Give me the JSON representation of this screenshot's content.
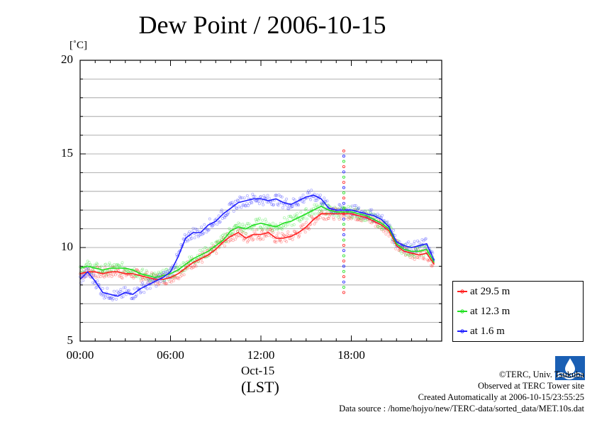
{
  "chart_data": {
    "type": "line",
    "title": "Dew Point / 2006-10-15",
    "y_unit": "[˚C]",
    "ylim": [
      5,
      20
    ],
    "y_ticks": [
      "5",
      "10",
      "15",
      "20"
    ],
    "xlim": [
      0,
      24
    ],
    "x_ticks": [
      "00:00",
      "06:00",
      "12:00",
      "18:00"
    ],
    "x_date": "Oct-15",
    "x_timezone": "(LST)",
    "grid": true,
    "legend_position": "bottom-right outside",
    "hours": [
      0,
      0.5,
      1,
      1.5,
      2,
      2.5,
      3,
      3.5,
      4,
      4.5,
      5,
      5.5,
      6,
      6.5,
      7,
      7.5,
      8,
      8.5,
      9,
      9.5,
      10,
      10.5,
      11,
      11.5,
      12,
      12.5,
      13,
      13.5,
      14,
      14.5,
      15,
      15.5,
      16,
      16.5,
      17,
      17.5,
      18,
      18.5,
      19,
      19.5,
      20,
      20.5,
      21,
      21.5,
      22,
      22.5,
      23,
      23.5
    ],
    "series": [
      {
        "name": "at 29.5 m",
        "color": "#ff2020",
        "values": [
          8.6,
          8.7,
          8.7,
          8.6,
          8.7,
          8.7,
          8.6,
          8.6,
          8.5,
          8.4,
          8.3,
          8.3,
          8.4,
          8.6,
          8.9,
          9.2,
          9.4,
          9.6,
          9.9,
          10.3,
          10.6,
          10.8,
          10.5,
          10.7,
          10.7,
          10.8,
          10.5,
          10.5,
          10.6,
          10.8,
          11.1,
          11.5,
          11.8,
          11.8,
          11.8,
          11.8,
          11.8,
          11.7,
          11.6,
          11.4,
          11.2,
          10.9,
          10.1,
          9.8,
          9.7,
          9.6,
          9.7,
          9.1
        ]
      },
      {
        "name": "at 12.3 m",
        "color": "#20e020",
        "values": [
          8.9,
          9.0,
          8.9,
          8.8,
          8.9,
          8.9,
          8.9,
          8.8,
          8.6,
          8.5,
          8.4,
          8.5,
          8.6,
          8.8,
          9.1,
          9.4,
          9.6,
          9.8,
          10.1,
          10.4,
          10.9,
          11.1,
          11.0,
          11.2,
          11.3,
          11.2,
          11.1,
          11.3,
          11.4,
          11.6,
          11.8,
          12.0,
          12.2,
          12.0,
          11.9,
          11.9,
          11.9,
          11.8,
          11.7,
          11.5,
          11.3,
          11.0,
          10.2,
          9.9,
          9.8,
          9.8,
          9.9,
          9.2
        ]
      },
      {
        "name": "at 1.6 m",
        "color": "#2020ff",
        "values": [
          8.3,
          8.7,
          8.2,
          7.6,
          7.5,
          7.4,
          7.6,
          7.5,
          7.8,
          8.0,
          8.2,
          8.4,
          8.7,
          9.5,
          10.5,
          10.8,
          10.8,
          11.2,
          11.4,
          11.8,
          12.1,
          12.4,
          12.5,
          12.6,
          12.6,
          12.5,
          12.6,
          12.4,
          12.3,
          12.5,
          12.7,
          12.8,
          12.6,
          12.1,
          12.0,
          12.0,
          12.0,
          11.9,
          11.8,
          11.7,
          11.5,
          11.1,
          10.3,
          10.1,
          10.0,
          10.1,
          10.2,
          9.3
        ]
      }
    ],
    "spike_hour": 17.5,
    "spike_range": [
      7.6,
      15.2
    ]
  },
  "credits": {
    "copyright": "©TERC, Univ. Tsukuba",
    "observed": "Observed at TERC Tower site",
    "created": "Created Automatically at 2006-10-15/23:55:25",
    "source": "Data source : /home/hojyo/new/TERC-data/sorted_data/MET.10s.dat"
  },
  "logo_text": "TERC"
}
